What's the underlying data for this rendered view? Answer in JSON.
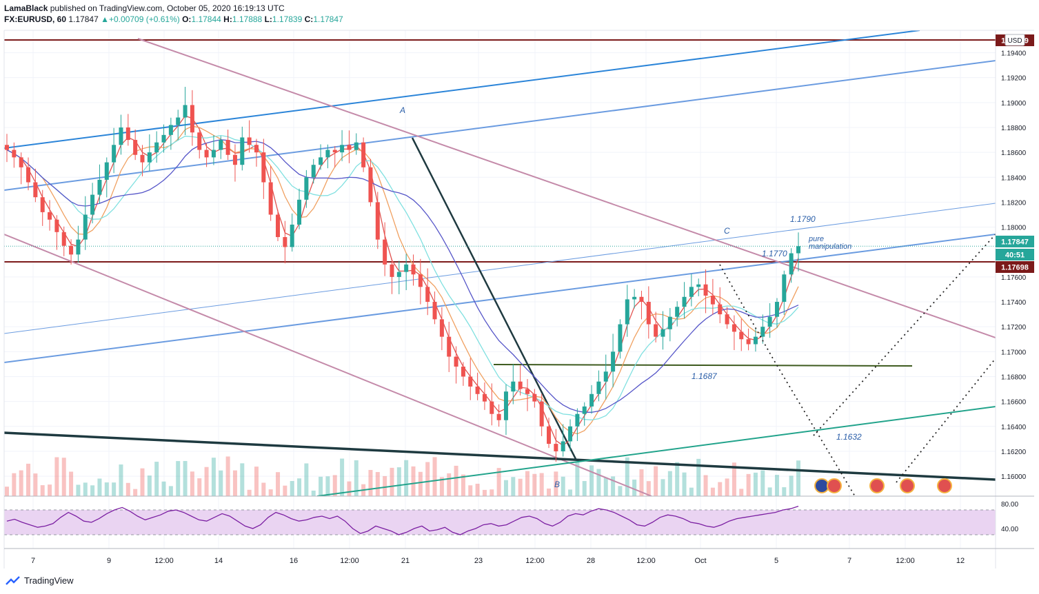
{
  "header": {
    "publisher": "LamaBlack",
    "published_text": "published on TradingView.com, October 05, 2020 16:19:13 UTC",
    "symbol": "FX:EURUSD, 60",
    "last": "1.17847",
    "change_arrow": "▲",
    "change": "+0.00709 (+0.61%)",
    "o_label": "O:",
    "o": "1.17844",
    "h_label": "H:",
    "h": "1.17888",
    "l_label": "L:",
    "l": "1.17839",
    "c_label": "C:",
    "c": "1.17847"
  },
  "footer": {
    "brand": "TradingView"
  },
  "colors": {
    "up": "#26a69a",
    "down": "#ef5350",
    "channel_blue": "#2a84d8",
    "channel_blue_light": "#6a9be0",
    "descending": "#c48aa9",
    "support_dark": "#1e3a40",
    "teal_line": "#21a38b",
    "hline_dark": "#7b1a1a",
    "olive": "#3d5a1e",
    "rsi": "#7b1fa2",
    "rsi_band": "#ead4f2"
  },
  "chart_data": [
    {
      "type": "candlestick",
      "symbol": "EURUSD",
      "timeframe": "60",
      "currency": "USD",
      "ylim": [
        1.1584,
        1.1958
      ],
      "y_ticks": [
        "1.19400",
        "1.19200",
        "1.19000",
        "1.18800",
        "1.18600",
        "1.18400",
        "1.18200",
        "1.18000",
        "1.17600",
        "1.17400",
        "1.17200",
        "1.17000",
        "1.16800",
        "1.16600",
        "1.16400",
        "1.16200",
        "1.16000"
      ],
      "x_ticks": [
        "7",
        "9",
        "12:00",
        "14",
        "16",
        "12:00",
        "21",
        "23",
        "12:00",
        "28",
        "12:00",
        "Oct",
        "5",
        "7",
        "12:00",
        "12"
      ],
      "price_labels": [
        {
          "text": "1.1790",
          "value": 1.179
        },
        {
          "text": "1.1770",
          "value": 1.177
        },
        {
          "text": "1.1687",
          "value": 1.1687
        },
        {
          "text": "1.1632",
          "value": 1.1632
        }
      ],
      "wave_labels": [
        "A",
        "B",
        "C"
      ],
      "annotation": [
        "pure",
        "manipulation"
      ],
      "axis_badges": [
        {
          "text": "1.17847",
          "kind": "last"
        },
        {
          "text": "40:51",
          "kind": "countdown"
        },
        {
          "text": "1.17698",
          "kind": "level"
        },
        {
          "text": "1.19409",
          "kind": "level"
        }
      ],
      "horizontal_levels": [
        1.19409,
        1.17698,
        1.1687
      ],
      "closes": [
        1.1862,
        1.1856,
        1.1848,
        1.1836,
        1.1824,
        1.1812,
        1.1806,
        1.1796,
        1.1785,
        1.1778,
        1.179,
        1.181,
        1.1826,
        1.1838,
        1.1852,
        1.1866,
        1.188,
        1.187,
        1.1858,
        1.1852,
        1.186,
        1.1868,
        1.1874,
        1.1882,
        1.1888,
        1.1898,
        1.1876,
        1.1862,
        1.1856,
        1.1862,
        1.187,
        1.1858,
        1.185,
        1.1872,
        1.1866,
        1.186,
        1.1836,
        1.181,
        1.1792,
        1.1784,
        1.1802,
        1.1822,
        1.184,
        1.185,
        1.1856,
        1.1862,
        1.186,
        1.1866,
        1.1862,
        1.1868,
        1.1848,
        1.182,
        1.179,
        1.177,
        1.176,
        1.1764,
        1.177,
        1.1762,
        1.1752,
        1.174,
        1.1726,
        1.1712,
        1.1696,
        1.1688,
        1.168,
        1.1672,
        1.1666,
        1.166,
        1.165,
        1.1645,
        1.1668,
        1.1676,
        1.167,
        1.1666,
        1.166,
        1.164,
        1.1626,
        1.162,
        1.1628,
        1.164,
        1.165,
        1.1656,
        1.1666,
        1.1676,
        1.1684,
        1.17,
        1.1722,
        1.1742,
        1.1744,
        1.174,
        1.1722,
        1.1712,
        1.1718,
        1.1728,
        1.1736,
        1.1744,
        1.1752,
        1.1754,
        1.1745,
        1.1738,
        1.173,
        1.1722,
        1.1716,
        1.171,
        1.1706,
        1.1712,
        1.172,
        1.1728,
        1.174,
        1.1762,
        1.1779,
        1.17847
      ],
      "volume_note": "volume histogram along bottom of price pane",
      "rsi": {
        "ticks": [
          "80.00",
          "40.00"
        ],
        "upper_band": 70,
        "lower_band": 30,
        "values": [
          52,
          55,
          50,
          46,
          42,
          44,
          48,
          58,
          66,
          60,
          52,
          50,
          56,
          64,
          70,
          74,
          68,
          60,
          54,
          58,
          62,
          68,
          70,
          66,
          60,
          54,
          52,
          58,
          64,
          60,
          52,
          44,
          40,
          46,
          58,
          66,
          62,
          56,
          52,
          54,
          58,
          60,
          56,
          60,
          52,
          40,
          32,
          36,
          44,
          40,
          36,
          30,
          34,
          40,
          44,
          36,
          38,
          42,
          34,
          30,
          36,
          40,
          46,
          48,
          44,
          46,
          52,
          58,
          60,
          56,
          48,
          44,
          50,
          60,
          64,
          62,
          68,
          72,
          70,
          66,
          60,
          54,
          46,
          44,
          50,
          58,
          62,
          60,
          56,
          50,
          48,
          44,
          42,
          46,
          52,
          56,
          58,
          60,
          62,
          64,
          66,
          70,
          72,
          76
        ]
      }
    }
  ]
}
